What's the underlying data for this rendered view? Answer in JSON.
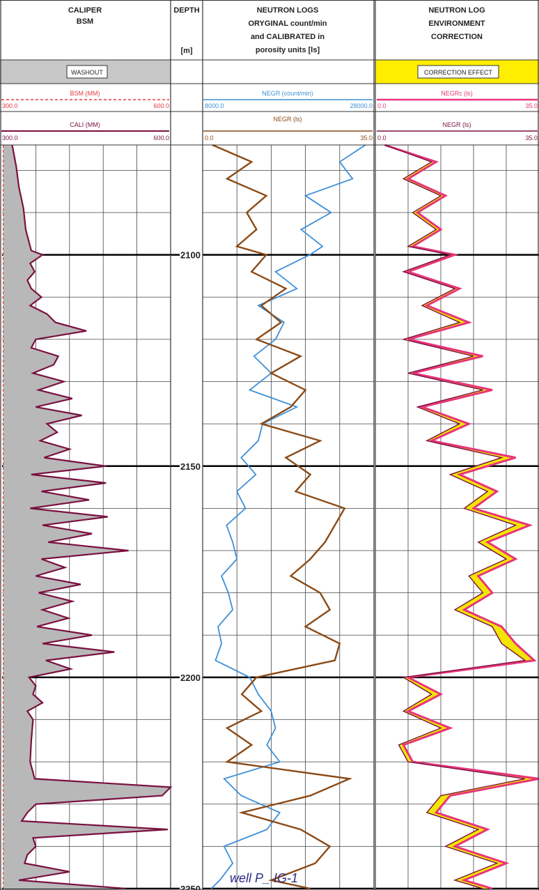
{
  "tracks": {
    "caliper": {
      "title1": "CALIPER",
      "title2": "BSM",
      "box": "WASHOUT"
    },
    "depth": {
      "title": "DEPTH",
      "unit": "[m]"
    },
    "neutron": {
      "title1": "NEUTRON LOGS",
      "title2": "ORYGINAL count/min",
      "title3": "and CALIBRATED in",
      "title4": "porosity units [ls]"
    },
    "correction": {
      "title1": "NEUTRON LOG",
      "title2": "ENVIRONMENT",
      "title3": "CORRECTION",
      "box": "CORRECTION EFFECT"
    }
  },
  "scales": {
    "bsm": {
      "name": "BSM (MM)",
      "min": "300.0",
      "max": "600.0",
      "color": "#e23b3b"
    },
    "cali": {
      "name": "CALI (MM)",
      "min": "300.0",
      "max": "600.0",
      "color": "#7a1040"
    },
    "negr_count": {
      "name": "NEGR (count/min)",
      "min": "8000.0",
      "max": "28000.0",
      "color": "#3d8fd8"
    },
    "negr_ls": {
      "name": "NEGR (ls)",
      "min": "0.0",
      "max": "35.0",
      "color": "#8a4a16"
    },
    "negrc": {
      "name": "NEGRc (ls)",
      "min": "0.0",
      "max": "35.0",
      "color": "#e8347a"
    },
    "negr2": {
      "name": "NEGR (ls)",
      "min": "0.0",
      "max": "35.0",
      "color": "#7a1040"
    }
  },
  "depth_labels": [
    "2100",
    "2150",
    "2200",
    "2250"
  ],
  "watermark": "well P_ IG-1",
  "colors": {
    "washout_fill": "#b8b8b8",
    "header_grey": "#c8c8c8",
    "correction_yellow": "#ffee00",
    "correction_fill": "#f2e600"
  },
  "chart_data": {
    "type": "line",
    "depth_range": [
      2074,
      2250
    ],
    "depth_unit": "m",
    "series": [
      {
        "name": "BSM (MM)",
        "track": "caliper",
        "scale": [
          300,
          600
        ],
        "depths": [
          2074,
          2250
        ],
        "values": [
          302,
          302
        ]
      },
      {
        "name": "CALI (MM)",
        "track": "caliper",
        "scale": [
          300,
          600
        ],
        "depths": [
          2074,
          2079,
          2084,
          2089,
          2094,
          2099,
          2100,
          2102,
          2104,
          2106,
          2108,
          2110,
          2112,
          2114,
          2116,
          2118,
          2120,
          2122,
          2124,
          2126,
          2128,
          2130,
          2132,
          2134,
          2136,
          2138,
          2140,
          2142,
          2144,
          2146,
          2148,
          2150,
          2152,
          2154,
          2156,
          2158,
          2160,
          2162,
          2164,
          2166,
          2168,
          2170,
          2172,
          2174,
          2176,
          2178,
          2180,
          2182,
          2184,
          2186,
          2188,
          2190,
          2192,
          2194,
          2196,
          2198,
          2200,
          2202,
          2204,
          2206,
          2208,
          2210,
          2215,
          2220,
          2224,
          2226,
          2228,
          2230,
          2232,
          2234,
          2236,
          2238,
          2240,
          2242,
          2244,
          2246,
          2248,
          2250
        ],
        "values": [
          318,
          325,
          330,
          338,
          342,
          352,
          372,
          350,
          358,
          345,
          352,
          370,
          350,
          380,
          395,
          450,
          360,
          352,
          400,
          392,
          355,
          410,
          365,
          425,
          360,
          442,
          380,
          398,
          368,
          420,
          375,
          485,
          352,
          485,
          370,
          455,
          350,
          488,
          372,
          460,
          382,
          525,
          370,
          412,
          360,
          440,
          365,
          425,
          372,
          418,
          362,
          460,
          372,
          500,
          378,
          422,
          348,
          360,
          355,
          372,
          345,
          355,
          352,
          350,
          358,
          612,
          585,
          360,
          345,
          335,
          595,
          355,
          360,
          345,
          340,
          420,
          330,
          520
        ]
      },
      {
        "name": "NEGR (count/min)",
        "track": "neutron",
        "scale": [
          8000,
          28000
        ],
        "depths": [
          2074,
          2078,
          2082,
          2086,
          2090,
          2094,
          2098,
          2100,
          2104,
          2108,
          2112,
          2116,
          2120,
          2124,
          2128,
          2132,
          2136,
          2140,
          2144,
          2148,
          2152,
          2156,
          2160,
          2164,
          2168,
          2172,
          2176,
          2180,
          2184,
          2188,
          2192,
          2196,
          2200,
          2204,
          2208,
          2212,
          2216,
          2220,
          2224,
          2228,
          2232,
          2236,
          2240,
          2244,
          2248,
          2250
        ],
        "values": [
          27000,
          24000,
          25500,
          20000,
          23000,
          19500,
          22000,
          20500,
          16500,
          19000,
          14500,
          17500,
          16500,
          14000,
          16000,
          13500,
          19000,
          15000,
          14500,
          12500,
          14200,
          12000,
          13000,
          10800,
          11500,
          12000,
          10200,
          11000,
          11500,
          9800,
          10200,
          9500,
          13500,
          14500,
          16000,
          16500,
          15500,
          17000,
          10500,
          12500,
          17000,
          15500,
          10500,
          11500,
          10000,
          9000
        ]
      },
      {
        "name": "NEGR (ls)",
        "track": "neutron",
        "scale": [
          0,
          35
        ],
        "depths": [
          2074,
          2078,
          2082,
          2086,
          2090,
          2094,
          2098,
          2100,
          2104,
          2108,
          2112,
          2116,
          2120,
          2124,
          2128,
          2132,
          2136,
          2140,
          2144,
          2148,
          2152,
          2156,
          2160,
          2164,
          2168,
          2172,
          2176,
          2180,
          2184,
          2188,
          2192,
          2196,
          2200,
          2204,
          2208,
          2212,
          2216,
          2220,
          2224,
          2228,
          2232,
          2236,
          2240,
          2244,
          2248,
          2250
        ],
        "values": [
          2,
          10,
          5,
          13,
          9,
          11,
          7,
          13,
          10,
          17,
          12,
          16,
          11,
          20,
          14,
          21,
          18,
          12,
          24,
          17,
          22,
          19,
          29,
          27,
          25,
          22,
          18,
          24,
          26,
          21,
          28,
          27,
          11,
          8,
          12,
          5,
          10,
          5,
          30,
          22,
          8,
          20,
          26,
          23,
          14,
          22
        ]
      },
      {
        "name": "NEGRc (ls)",
        "track": "correction",
        "scale": [
          0,
          35
        ],
        "depths": [
          2074,
          2078,
          2082,
          2086,
          2090,
          2094,
          2098,
          2100,
          2104,
          2108,
          2112,
          2116,
          2120,
          2124,
          2128,
          2132,
          2136,
          2140,
          2144,
          2148,
          2152,
          2156,
          2160,
          2164,
          2168,
          2172,
          2176,
          2180,
          2184,
          2188,
          2192,
          2196,
          2200,
          2204,
          2208,
          2212,
          2216,
          2220,
          2224,
          2228,
          2232,
          2236,
          2240,
          2244,
          2248,
          2250
        ],
        "values": [
          2,
          13,
          7,
          15,
          9,
          14,
          8,
          17,
          7,
          18,
          11,
          20,
          7,
          23,
          8,
          25,
          10,
          20,
          12,
          30,
          18,
          26,
          21,
          33,
          24,
          30,
          22,
          25,
          19,
          27,
          30,
          34,
          7,
          14,
          7,
          16,
          6,
          8,
          35,
          16,
          13,
          24,
          17,
          28,
          19,
          25
        ]
      },
      {
        "name": "NEGR (ls)",
        "track": "correction",
        "scale": [
          0,
          35
        ],
        "depths": [
          2074,
          2078,
          2082,
          2086,
          2090,
          2094,
          2098,
          2100,
          2104,
          2108,
          2112,
          2116,
          2120,
          2124,
          2128,
          2132,
          2136,
          2140,
          2144,
          2148,
          2152,
          2156,
          2160,
          2164,
          2168,
          2172,
          2176,
          2180,
          2184,
          2188,
          2192,
          2196,
          2200,
          2204,
          2208,
          2212,
          2216,
          2220,
          2224,
          2228,
          2232,
          2236,
          2240,
          2244,
          2248,
          2250
        ],
        "values": [
          2,
          12,
          6,
          14,
          8,
          13,
          7,
          16,
          6,
          17,
          10,
          18,
          6,
          21,
          7,
          23,
          9,
          18,
          11,
          27,
          16,
          24,
          19,
          30,
          22,
          28,
          20,
          23,
          17,
          25,
          27,
          32,
          6,
          12,
          6,
          14,
          5,
          7,
          32,
          14,
          11,
          22,
          15,
          26,
          17,
          23
        ]
      }
    ]
  }
}
